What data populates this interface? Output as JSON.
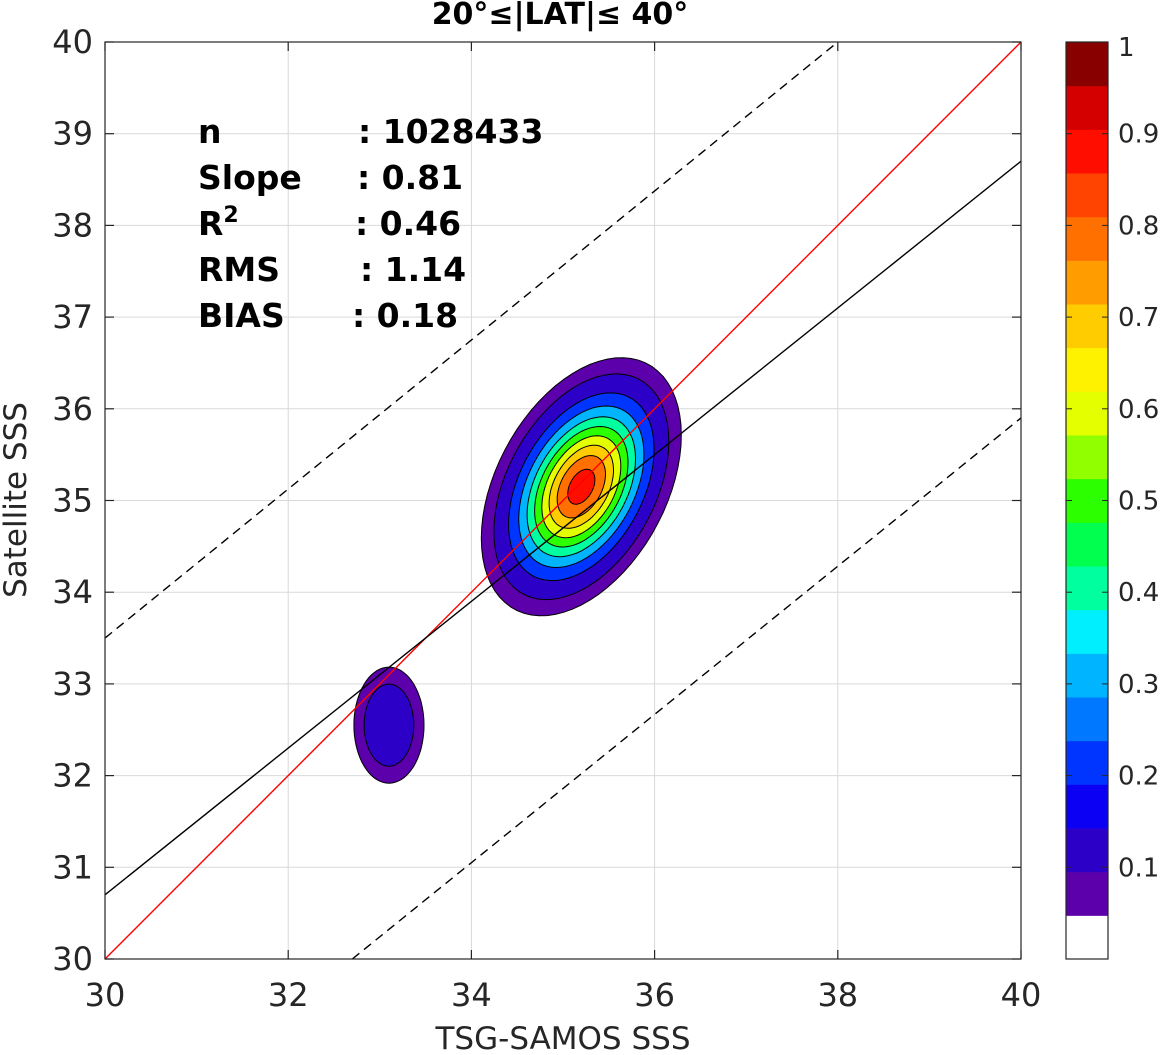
{
  "chart_data": {
    "type": "contour",
    "title": "20°≤|LAT|≤ 40°",
    "xlabel": "TSG-SAMOS SSS",
    "ylabel": "Satellite SSS",
    "xlim": [
      30,
      40
    ],
    "ylim": [
      30,
      40
    ],
    "xticks": [
      "30",
      "32",
      "34",
      "36",
      "38",
      "40"
    ],
    "yticks": [
      "30",
      "31",
      "32",
      "33",
      "34",
      "35",
      "36",
      "37",
      "38",
      "39",
      "40"
    ],
    "grid": true,
    "stats": [
      {
        "label": "n",
        "value": ": 1028433"
      },
      {
        "label": "Slope",
        "value": ": 0.81"
      },
      {
        "label": "R",
        "sup": "2",
        "value": ": 0.46"
      },
      {
        "label": "RMS",
        "value": ": 1.14"
      },
      {
        "label": "BIAS",
        "value": ": 0.18"
      }
    ],
    "lines": {
      "one_to_one": {
        "color": "#ff0000",
        "points": [
          [
            30,
            30
          ],
          [
            40,
            40
          ]
        ]
      },
      "regression": {
        "color": "#000000",
        "points": [
          [
            30,
            30.7
          ],
          [
            40,
            38.7
          ]
        ]
      },
      "upper_bound": {
        "color": "#000000",
        "dashed": true,
        "points": [
          [
            30,
            33.5
          ],
          [
            38,
            40
          ]
        ]
      },
      "lower_bound": {
        "color": "#000000",
        "dashed": true,
        "points": [
          [
            32.7,
            30
          ],
          [
            40,
            35.9
          ]
        ]
      }
    },
    "density_peaks": [
      {
        "name": "main",
        "center": [
          35.2,
          35.15
        ],
        "sx": 0.45,
        "sy": 0.58,
        "rho": 0.4,
        "amp": 0.95
      },
      {
        "name": "secondary",
        "center": [
          33.1,
          32.55
        ],
        "sx": 0.23,
        "sy": 0.38,
        "rho": 0.0,
        "amp": 0.2
      }
    ],
    "contour_levels": [
      0.05,
      0.1,
      0.2,
      0.3,
      0.4,
      0.5,
      0.6,
      0.7,
      0.8,
      0.9
    ],
    "colorbar": {
      "range": [
        0,
        1
      ],
      "ticks": [
        "0.1",
        "0.2",
        "0.3",
        "0.4",
        "0.5",
        "0.6",
        "0.7",
        "0.8",
        "0.9",
        "1"
      ],
      "tick_values": [
        0.1,
        0.2,
        0.3,
        0.4,
        0.5,
        0.6,
        0.7,
        0.8,
        0.9,
        1.0
      ],
      "colors": [
        "#ffffff",
        "#5b00aa",
        "#2d00c8",
        "#0b00f3",
        "#0034ff",
        "#0078ff",
        "#00b4ff",
        "#00efff",
        "#00ff9f",
        "#00ff4f",
        "#2bff00",
        "#92ff00",
        "#e4ff00",
        "#fff200",
        "#ffcc00",
        "#ff9c00",
        "#ff7000",
        "#ff4300",
        "#ff0e00",
        "#d40000",
        "#880000"
      ]
    }
  }
}
